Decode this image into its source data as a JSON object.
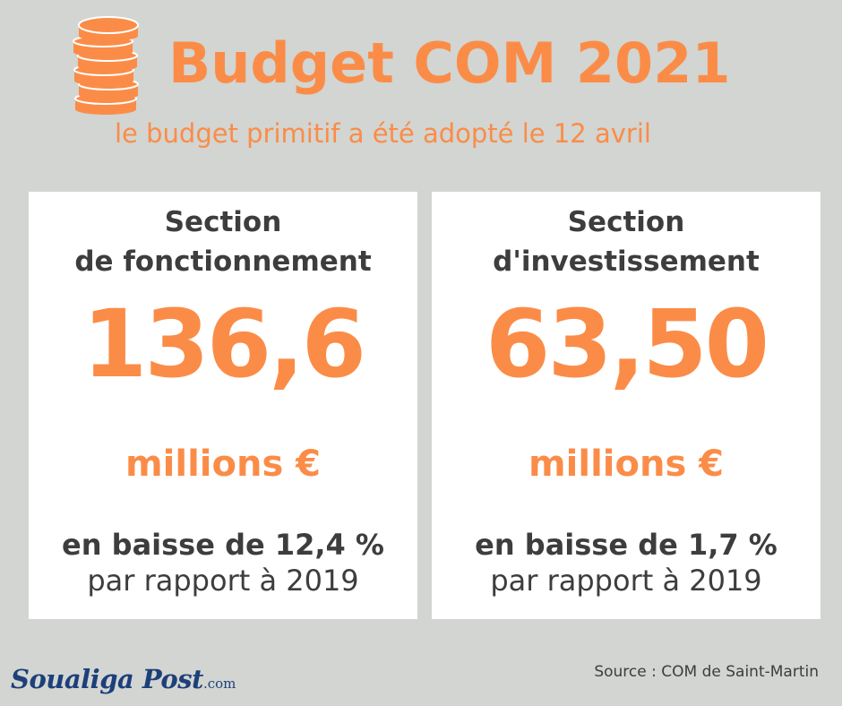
{
  "header": {
    "title": "Budget COM 2021",
    "subtitle": "le budget primitif a été adopté le 12 avril",
    "icon": "coin-stack-icon"
  },
  "cards": [
    {
      "heading_line1": "Section",
      "heading_line2": "de fonctionnement",
      "value": "136,6",
      "unit": "millions €",
      "change": "en baisse de 12,4 %",
      "comparison": "par rapport à 2019"
    },
    {
      "heading_line1": "Section",
      "heading_line2": "d'investissement",
      "value": "63,50",
      "unit": "millions €",
      "change": "en baisse de 1,7 %",
      "comparison": "par rapport à 2019"
    }
  ],
  "footer": {
    "logo_name": "Soualiga Post",
    "logo_domain": ".com",
    "source": "Source : COM de Saint-Martin"
  },
  "colors": {
    "accent": "#fb8c48",
    "background": "#d2d5d1",
    "card": "#ffffff",
    "text_dark": "#3d3d3d",
    "logo_blue": "#1d3f7a"
  }
}
